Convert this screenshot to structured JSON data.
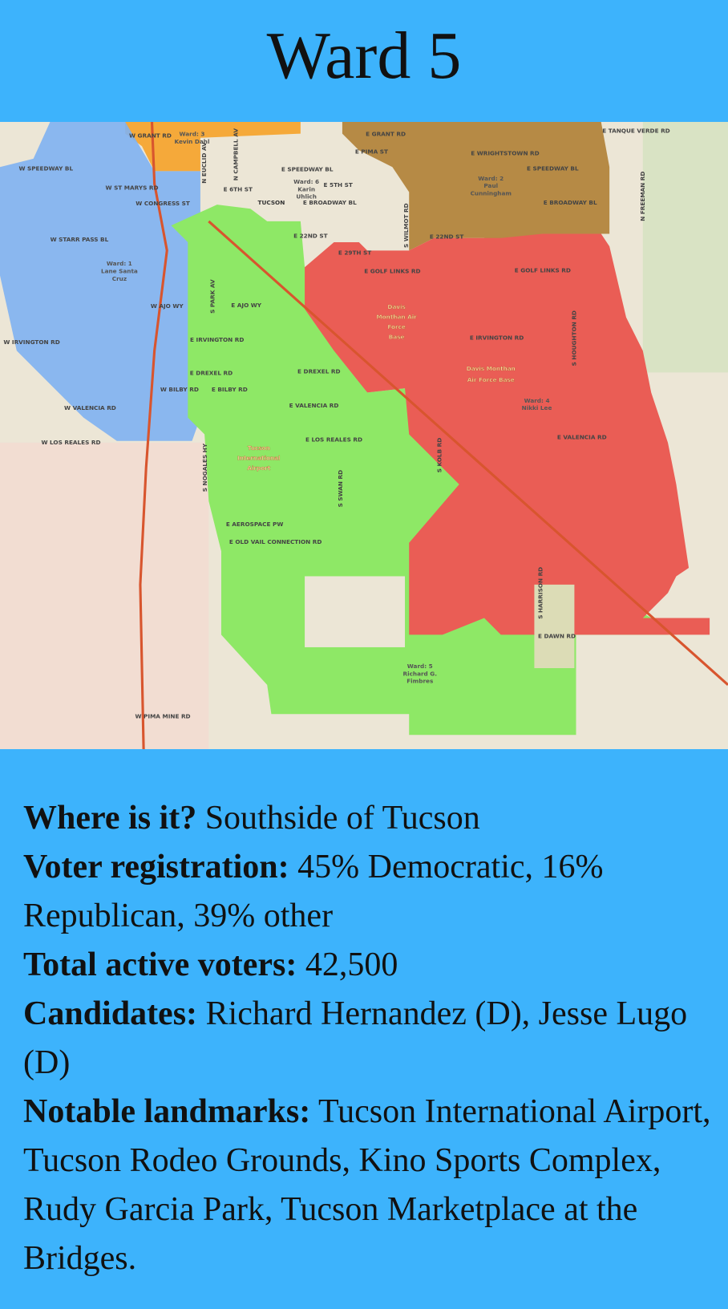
{
  "header": {
    "title": "Ward 5"
  },
  "map": {
    "labels": [
      "W GRANT RD",
      "Ward: 3",
      "Kevin Dahl",
      "E GRANT RD",
      "E WRIGHTSTOWN RD",
      "E TANQUE VERDE RD",
      "E PIMA ST",
      "W SPEEDWAY BL",
      "E SPEEDWAY BL",
      "E SPEEDWAY BL",
      "W ST MARYS RD",
      "Ward: 6",
      "Karin",
      "Uhlich",
      "E 5TH ST",
      "Ward: 2",
      "Paul",
      "Cunningham",
      "E 6TH ST",
      "W CONGRESS ST",
      "TUCSON",
      "E BROADWAY BL",
      "E BROADWAY BL",
      "W STARR PASS BL",
      "E 22ND ST",
      "E 22ND ST",
      "E 29TH ST",
      "E GOLF LINKS RD",
      "E GOLF LINKS RD",
      "Ward: 1",
      "Lane Santa",
      "Cruz",
      "W AJO WY",
      "E AJO WY",
      "Davis",
      "Monthan Air",
      "Force",
      "Base",
      "W IRVINGTON RD",
      "E IRVINGTON RD",
      "E IRVINGTON RD",
      "Davis Monthan",
      "Air Force Base",
      "E DREXEL RD",
      "E DREXEL RD",
      "W BILBY RD",
      "E BILBY RD",
      "Ward: 4",
      "Nikki Lee",
      "W VALENCIA RD",
      "E VALENCIA RD",
      "E VALENCIA RD",
      "W LOS REALES RD",
      "E LOS REALES RD",
      "Tucson",
      "International",
      "Airport",
      "E AEROSPACE PW",
      "E OLD VAIL CONNECTION RD",
      "E DAWN RD",
      "Ward: 5",
      "Richard G.",
      "Fimbres",
      "W PIMA MINE RD",
      "S PARK AV",
      "S WILMOT RD",
      "S KOLB RD",
      "S HOUGHTON RD",
      "N FREEMAN RD",
      "S NOGALES HY",
      "S SWAN RD",
      "S HARRISON RD",
      "N EUCLID AV",
      "N CAMPBELL AV"
    ]
  },
  "info": {
    "items": [
      {
        "label": "Where is it?",
        "text": "Southside of Tucson"
      },
      {
        "label": "Voter registration:",
        "text": "45% Democratic, 16% Republican, 39% other"
      },
      {
        "label": "Total active voters:",
        "text": "42,500"
      },
      {
        "label": "Candidates:",
        "text": "Richard Hernandez (D), Jesse Lugo (D)"
      },
      {
        "label": "Notable landmarks:",
        "text": "Tucson International Airport, Tucson Rodeo Grounds, Kino Sports Complex, Rudy Garcia Park, Tucson Marketplace at the Bridges."
      }
    ]
  }
}
